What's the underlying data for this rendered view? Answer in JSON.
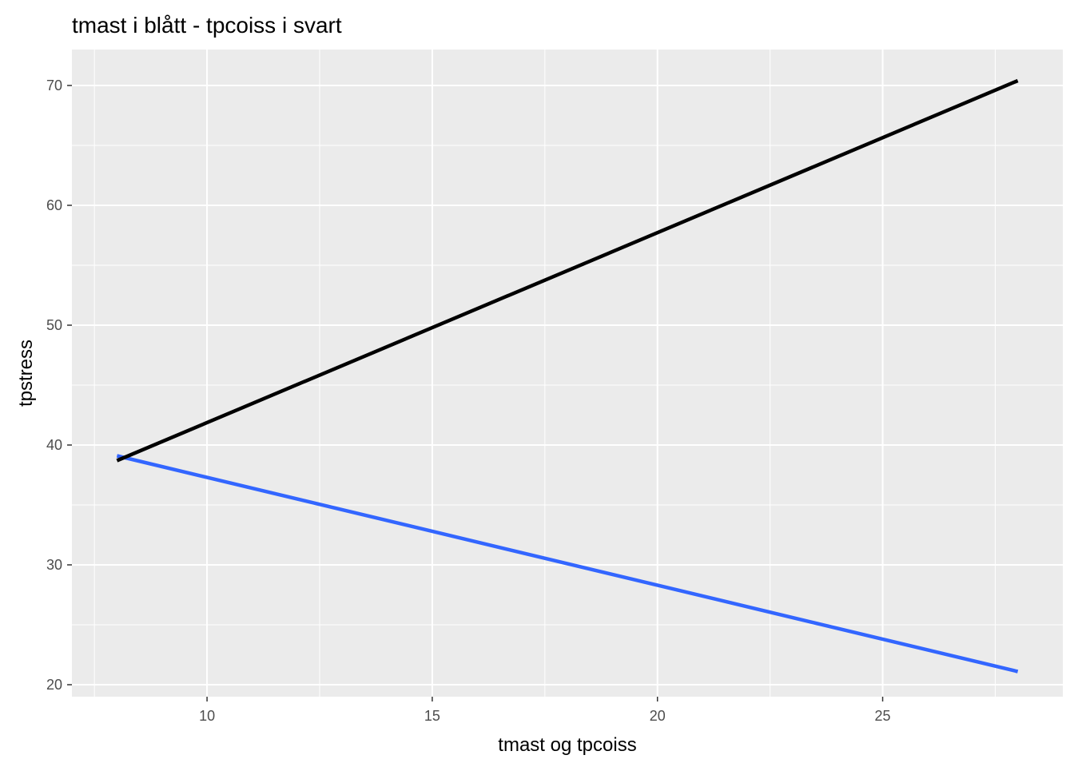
{
  "chart_data": {
    "type": "line",
    "title": "tmast i blått - tpcoiss i svart",
    "xlabel": "tmast og tpcoiss",
    "ylabel": "tpstress",
    "xlim": [
      7,
      29
    ],
    "ylim": [
      19,
      73
    ],
    "x_ticks": [
      10,
      15,
      20,
      25
    ],
    "x_tick_labels": [
      "10",
      "15",
      "20",
      "25"
    ],
    "y_ticks": [
      20,
      30,
      40,
      50,
      60,
      70
    ],
    "y_tick_labels": [
      "20",
      "30",
      "40",
      "50",
      "60",
      "70"
    ],
    "grid": true,
    "legend": "none",
    "series": [
      {
        "color": "#3366FF",
        "x": [
          8,
          28
        ],
        "y": [
          39.1,
          21.1
        ]
      },
      {
        "color": "#000000",
        "x": [
          8,
          28
        ],
        "y": [
          38.7,
          70.4
        ]
      }
    ]
  }
}
